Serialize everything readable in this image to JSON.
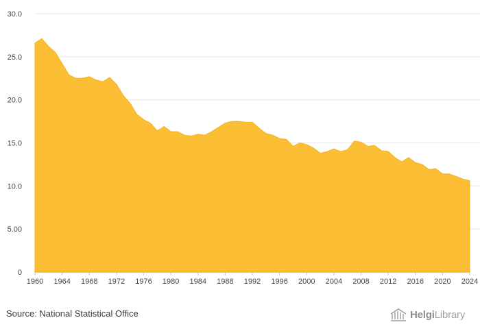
{
  "footer": {
    "source": "Source: National Statistical Office",
    "brand_part1": "Helgi",
    "brand_part2": "Library"
  },
  "colors": {
    "area": "#FBBE34",
    "area_stroke": "#F2B21E",
    "grid": "#e6e6e6",
    "axis": "#c8c8c8",
    "tick_text": "#444444"
  },
  "chart_data": {
    "type": "area",
    "title": "",
    "xlabel": "",
    "ylabel": "",
    "xlim": [
      1960,
      2024
    ],
    "ylim": [
      0,
      30
    ],
    "grid": true,
    "y_ticks": [
      0,
      5,
      10,
      15,
      20,
      25,
      30
    ],
    "y_tick_labels": [
      "0",
      "5.00",
      "10.0",
      "15.0",
      "20.0",
      "25.0",
      "30.0"
    ],
    "x_ticks": [
      1960,
      1964,
      1968,
      1972,
      1976,
      1980,
      1984,
      1988,
      1992,
      1996,
      2000,
      2004,
      2008,
      2012,
      2016,
      2020,
      2024
    ],
    "x_tick_labels": [
      "1960",
      "1964",
      "1968",
      "1972",
      "1976",
      "1980",
      "1984",
      "1988",
      "1992",
      "1996",
      "2000",
      "2004",
      "2008",
      "2012",
      "2016",
      "2020",
      "2024"
    ],
    "x": [
      1960,
      1961,
      1962,
      1963,
      1964,
      1965,
      1966,
      1967,
      1968,
      1969,
      1970,
      1971,
      1972,
      1973,
      1974,
      1975,
      1976,
      1977,
      1978,
      1979,
      1980,
      1981,
      1982,
      1983,
      1984,
      1985,
      1986,
      1987,
      1988,
      1989,
      1990,
      1991,
      1992,
      1993,
      1994,
      1995,
      1996,
      1997,
      1998,
      1999,
      2000,
      2001,
      2002,
      2003,
      2004,
      2005,
      2006,
      2007,
      2008,
      2009,
      2010,
      2011,
      2012,
      2013,
      2014,
      2015,
      2016,
      2017,
      2018,
      2019,
      2020,
      2021,
      2022,
      2023,
      2024
    ],
    "values": [
      26.6,
      27.1,
      26.2,
      25.5,
      24.2,
      22.9,
      22.5,
      22.5,
      22.7,
      22.3,
      22.1,
      22.6,
      21.8,
      20.5,
      19.6,
      18.3,
      17.7,
      17.3,
      16.4,
      16.9,
      16.3,
      16.3,
      15.9,
      15.8,
      16.0,
      15.9,
      16.3,
      16.8,
      17.3,
      17.5,
      17.5,
      17.4,
      17.4,
      16.7,
      16.1,
      15.9,
      15.5,
      15.4,
      14.6,
      15.0,
      14.8,
      14.4,
      13.8,
      14.0,
      14.3,
      14.0,
      14.2,
      15.2,
      15.1,
      14.6,
      14.7,
      14.1,
      14.0,
      13.3,
      12.8,
      13.3,
      12.7,
      12.5,
      11.9,
      12.0,
      11.4,
      11.4,
      11.1,
      10.8,
      10.6
    ]
  }
}
